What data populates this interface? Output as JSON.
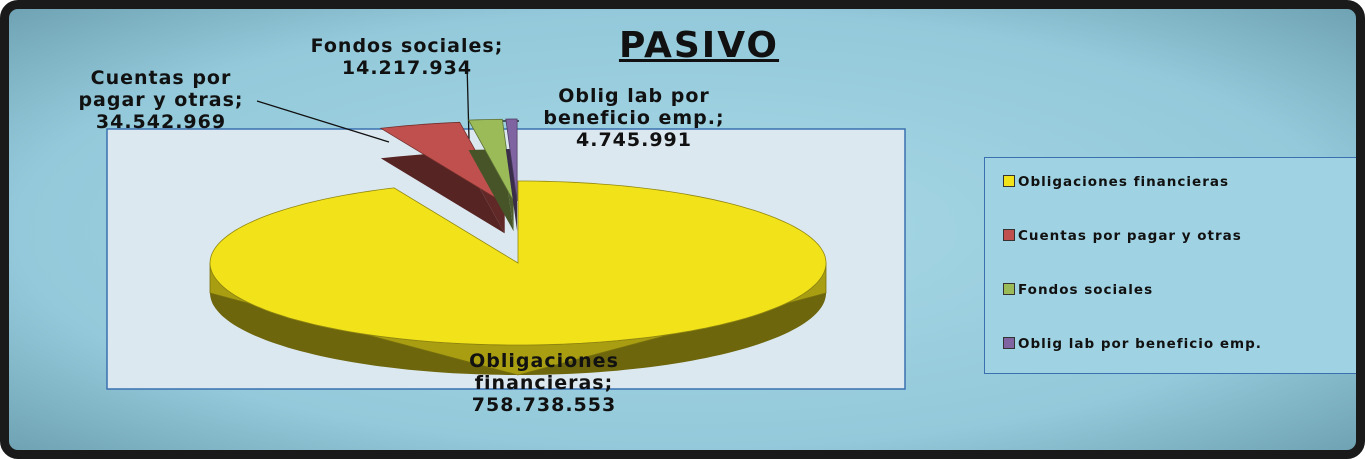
{
  "chart_data": {
    "type": "pie",
    "title": "PASIVO",
    "categories": [
      "Obligaciones financieras",
      "Cuentas por pagar y otras",
      "Fondos sociales",
      "Oblig lab por beneficio emp."
    ],
    "values": [
      758738553,
      34542969,
      14217934,
      4745991
    ],
    "value_labels": [
      "Obligaciones financieras; 758.738.553",
      "Cuentas por pagar y otras; 34.542.969",
      "Fondos sociales; 14.217.934",
      "Oblig lab por beneficio emp.; 4.745.991"
    ],
    "colors": [
      "#f2e21a",
      "#c0504d",
      "#9bbb59",
      "#8064a2"
    ],
    "legend": "right",
    "three_d": true
  }
}
